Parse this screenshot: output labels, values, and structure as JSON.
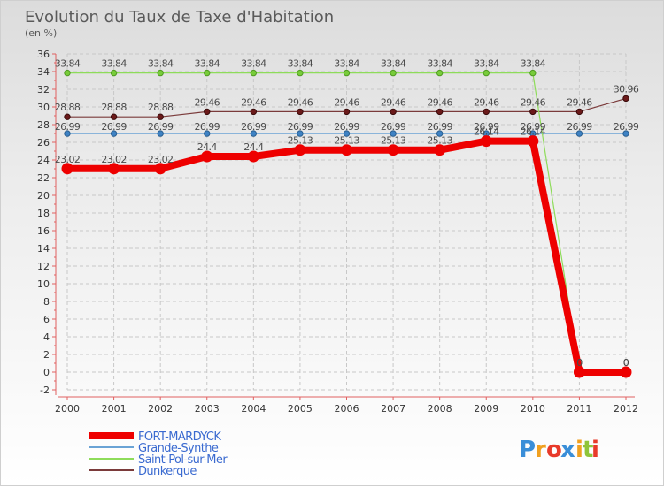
{
  "chart_data": {
    "type": "line",
    "title": "Evolution du Taux de Taxe d'Habitation",
    "subtitle": "(en %)",
    "xlabel": "",
    "ylabel": "",
    "categories": [
      "2000",
      "2001",
      "2002",
      "2003",
      "2004",
      "2005",
      "2006",
      "2007",
      "2008",
      "2009",
      "2010",
      "2011",
      "2012"
    ],
    "ylim": [
      -2,
      36
    ],
    "yticks": [
      -2,
      0,
      2,
      4,
      6,
      8,
      10,
      12,
      14,
      16,
      18,
      20,
      22,
      24,
      26,
      28,
      30,
      32,
      34,
      36
    ],
    "grid": true,
    "legend_position": "bottom-left",
    "series": [
      {
        "name": "FORT-MARDYCK",
        "color": "#ee0000",
        "values": [
          23.02,
          23.02,
          23.02,
          24.4,
          24.4,
          25.13,
          25.13,
          25.13,
          25.13,
          26.14,
          26.14,
          0,
          0
        ],
        "labels": [
          "23.02",
          "23.02",
          "23.02",
          "24.4",
          "24.4",
          "25.13",
          "25.13",
          "25.13",
          "25.13",
          "26.14",
          "26.14",
          "0",
          "0"
        ]
      },
      {
        "name": "Grande-Synthe",
        "color": "#6aa3d5",
        "values": [
          26.99,
          26.99,
          26.99,
          26.99,
          26.99,
          26.99,
          26.99,
          26.99,
          26.99,
          26.99,
          26.99,
          26.99,
          26.99
        ],
        "labels": [
          "26.99",
          "26.99",
          "26.99",
          "26.99",
          "26.99",
          "26.99",
          "26.99",
          "26.99",
          "26.99",
          "26.99",
          "26.99",
          "26.99",
          "26.99"
        ]
      },
      {
        "name": "Saint-Pol-sur-Mer",
        "color": "#8edc5a",
        "values": [
          33.84,
          33.84,
          33.84,
          33.84,
          33.84,
          33.84,
          33.84,
          33.84,
          33.84,
          33.84,
          33.84,
          0,
          0
        ],
        "labels": [
          "33.84",
          "33.84",
          "33.84",
          "33.84",
          "33.84",
          "33.84",
          "33.84",
          "33.84",
          "33.84",
          "33.84",
          "33.84",
          "0",
          "0"
        ]
      },
      {
        "name": "Dunkerque",
        "color": "#7a3a3a",
        "values": [
          28.88,
          28.88,
          28.88,
          29.46,
          29.46,
          29.46,
          29.46,
          29.46,
          29.46,
          29.46,
          29.46,
          29.46,
          30.96
        ],
        "labels": [
          "28.88",
          "28.88",
          "28.88",
          "29.46",
          "29.46",
          "29.46",
          "29.46",
          "29.46",
          "29.46",
          "29.46",
          "29.46",
          "29.46",
          "30.96"
        ]
      }
    ]
  },
  "brand": {
    "letters": [
      "P",
      "r",
      "o",
      "x",
      "i",
      "t",
      "i"
    ],
    "colors": [
      "#3a8ed8",
      "#f0a020",
      "#e83a2a",
      "#3a8ed8",
      "#f0a020",
      "#8fc43a",
      "#e83a2a"
    ]
  }
}
